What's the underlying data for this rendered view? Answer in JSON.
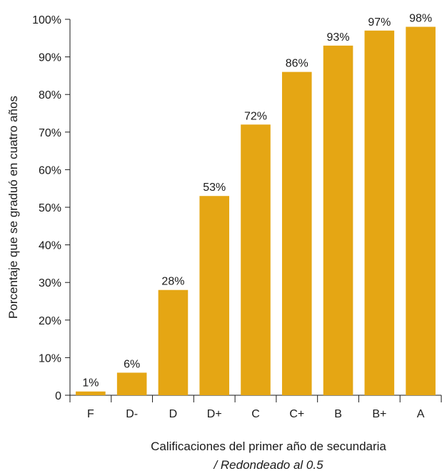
{
  "chart_data": {
    "type": "bar",
    "categories": [
      "F",
      "D-",
      "D",
      "D+",
      "C",
      "C+",
      "B",
      "B+",
      "A"
    ],
    "values": [
      1,
      6,
      28,
      53,
      72,
      86,
      93,
      97,
      98
    ],
    "data_labels": [
      "1%",
      "6%",
      "28%",
      "53%",
      "72%",
      "86%",
      "93%",
      "97%",
      "98%"
    ],
    "xlabel": "Calificaciones del primer año de secundaria",
    "xlabel_note": "/ Redondeado al 0.5",
    "ylabel": "Porcentaje que se graduó en cuatro años",
    "ylim": [
      0,
      100
    ],
    "yticks": [
      0,
      10,
      20,
      30,
      40,
      50,
      60,
      70,
      80,
      90,
      100
    ],
    "ytick_labels": [
      "0",
      "10%",
      "20%",
      "30%",
      "40%",
      "50%",
      "60%",
      "70%",
      "80%",
      "90%",
      "100%"
    ],
    "grid": false,
    "bar_color": "#E5A614"
  }
}
